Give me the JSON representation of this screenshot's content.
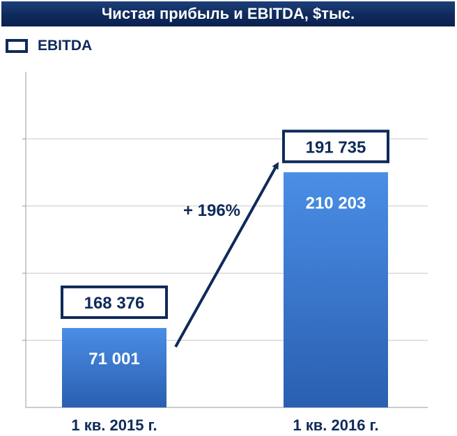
{
  "title": "Чистая прибыль и EBITDA, $тыс.",
  "legend": {
    "label": "EBITDA"
  },
  "colors": {
    "title_bg": "#0f2a5a",
    "bar_top": "#4a8ee6",
    "bar_bottom": "#2a5fb0",
    "box_border": "#0f2a5a",
    "text_dark": "#0f2a5a",
    "grid": "#c8c8c8"
  },
  "growth_label": "+ 196%",
  "chart_data": {
    "type": "bar",
    "categories": [
      "1 кв. 2015 г.",
      "1 кв. 2016 г."
    ],
    "series": [
      {
        "name": "EBITDA",
        "values": [
          168376,
          191735
        ]
      },
      {
        "values": [
          71001,
          210203
        ]
      }
    ],
    "bar_labels": [
      "71 001",
      "210 203"
    ],
    "box_labels": [
      "168 376",
      "191 735"
    ],
    "ylim": [
      0,
      300000
    ],
    "grid": true
  }
}
